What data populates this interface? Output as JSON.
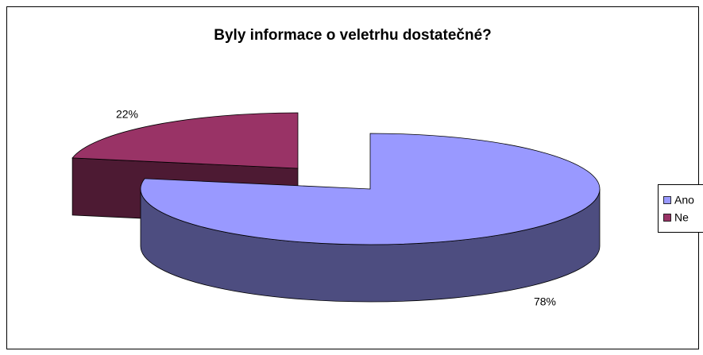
{
  "chart_data": {
    "type": "pie",
    "title": "Byly informace o veletrhu dostatečné?",
    "categories": [
      "Ano",
      "Ne"
    ],
    "values": [
      78,
      22
    ],
    "value_labels": [
      "78%",
      "22%"
    ],
    "colors": [
      "#9999ff",
      "#993366"
    ],
    "legend": "right"
  }
}
